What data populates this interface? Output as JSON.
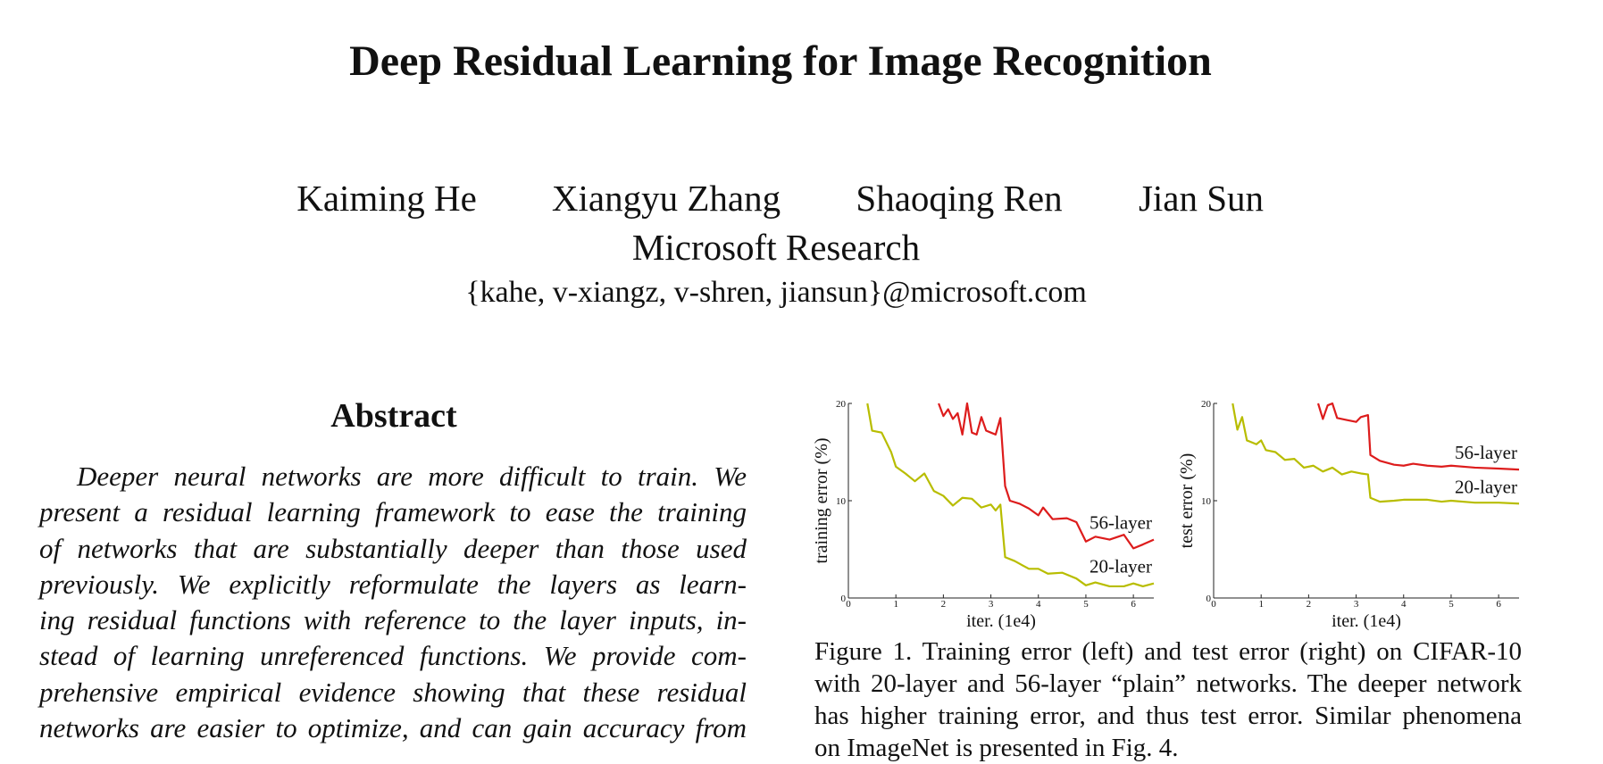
{
  "header": {
    "title": "Deep Residual Learning for Image Recognition",
    "authors": [
      "Kaiming He",
      "Xiangyu Zhang",
      "Shaoqing Ren",
      "Jian Sun"
    ],
    "affiliation": "Microsoft Research",
    "email": "{kahe, v-xiangz, v-shren, jiansun}@microsoft.com"
  },
  "abstract": {
    "heading": "Abstract",
    "lines": [
      "Deeper neural networks are more difficult to train.  We",
      "present a residual learning framework to ease the training",
      "of networks that are substantially deeper than those used",
      "previously.  We explicitly reformulate the layers as learn-",
      "ing residual functions with reference to the layer inputs, in-",
      "stead of learning unreferenced functions.  We provide com-",
      "prehensive empirical evidence showing that these residual",
      "networks are easier to optimize, and can gain accuracy from"
    ]
  },
  "chart_data": [
    {
      "type": "line",
      "ylabel": "training error (%)",
      "xlabel": "iter. (1e4)",
      "xlim": [
        0,
        6.43
      ],
      "ylim": [
        0,
        20
      ],
      "xticks": [
        0,
        1,
        2,
        3,
        4,
        5,
        6
      ],
      "yticks": [
        0,
        10,
        20
      ],
      "series": [
        {
          "name": "56-layer",
          "color": "#dd1c1c",
          "x": [
            1.9,
            2.0,
            2.1,
            2.2,
            2.3,
            2.4,
            2.5,
            2.6,
            2.7,
            2.8,
            2.9,
            3.0,
            3.1,
            3.2,
            3.3,
            3.4,
            3.6,
            3.8,
            4.0,
            4.1,
            4.3,
            4.6,
            4.8,
            5.0,
            5.2,
            5.5,
            5.8,
            6.0,
            6.2,
            6.43
          ],
          "values": [
            20,
            18.7,
            19.4,
            18.4,
            19,
            16.8,
            20,
            17,
            16.8,
            18.6,
            17.2,
            17,
            16.8,
            18.5,
            11.5,
            10,
            9.7,
            9.2,
            8.5,
            9.3,
            8.1,
            8.2,
            7.8,
            5.8,
            6.3,
            6.0,
            6.5,
            5.1,
            5.5,
            6.0
          ]
        },
        {
          "name": "20-layer",
          "color": "#b8bd00",
          "x": [
            0.4,
            0.5,
            0.7,
            0.9,
            1.0,
            1.2,
            1.4,
            1.6,
            1.8,
            2.0,
            2.2,
            2.4,
            2.6,
            2.8,
            3.0,
            3.1,
            3.2,
            3.3,
            3.5,
            3.8,
            4.0,
            4.2,
            4.5,
            4.8,
            5.0,
            5.2,
            5.5,
            5.8,
            6.0,
            6.2,
            6.43
          ],
          "values": [
            20,
            17.2,
            17,
            15,
            13.5,
            12.8,
            12,
            12.8,
            11,
            10.5,
            9.5,
            10.3,
            10.2,
            9.3,
            9.6,
            9.0,
            9.6,
            4.2,
            3.8,
            3.0,
            3.0,
            2.5,
            2.6,
            2.0,
            1.3,
            1.6,
            1.2,
            1.2,
            1.5,
            1.2,
            1.5
          ]
        }
      ]
    },
    {
      "type": "line",
      "ylabel": "test error (%)",
      "xlabel": "iter. (1e4)",
      "xlim": [
        0,
        6.43
      ],
      "ylim": [
        0,
        20
      ],
      "xticks": [
        0,
        1,
        2,
        3,
        4,
        5,
        6
      ],
      "yticks": [
        0,
        10,
        20
      ],
      "series": [
        {
          "name": "56-layer",
          "color": "#dd1c1c",
          "x": [
            2.2,
            2.3,
            2.4,
            2.5,
            2.6,
            2.8,
            3.0,
            3.1,
            3.25,
            3.3,
            3.5,
            3.8,
            4.0,
            4.2,
            4.5,
            4.8,
            5.0,
            5.5,
            6.0,
            6.43
          ],
          "values": [
            20,
            18.4,
            19.8,
            20,
            18.5,
            18.3,
            18.1,
            18.6,
            18.8,
            14.7,
            14.1,
            13.7,
            13.6,
            13.8,
            13.6,
            13.5,
            13.6,
            13.4,
            13.3,
            13.2
          ]
        },
        {
          "name": "20-layer",
          "color": "#b8bd00",
          "x": [
            0.4,
            0.5,
            0.6,
            0.7,
            0.9,
            1.0,
            1.1,
            1.3,
            1.5,
            1.7,
            1.9,
            2.1,
            2.3,
            2.5,
            2.7,
            2.9,
            3.1,
            3.25,
            3.3,
            3.5,
            3.8,
            4.0,
            4.5,
            4.8,
            5.0,
            5.5,
            6.0,
            6.43
          ],
          "values": [
            20,
            17.3,
            18.6,
            16.2,
            15.8,
            16.2,
            15.2,
            15,
            14.2,
            14.3,
            13.4,
            13.6,
            13.0,
            13.4,
            12.7,
            13.0,
            12.8,
            12.7,
            10.3,
            9.9,
            10.0,
            10.1,
            10.1,
            9.9,
            10.0,
            9.8,
            9.8,
            9.7
          ]
        }
      ]
    }
  ],
  "figure": {
    "caption_lines": [
      "Figure 1. Training error (left) and test error (right) on CIFAR-10",
      "with 20-layer and 56-layer “plain” networks. The deeper network",
      "has higher training error, and thus test error.  Similar phenomena",
      "on ImageNet is presented in Fig. 4."
    ]
  }
}
